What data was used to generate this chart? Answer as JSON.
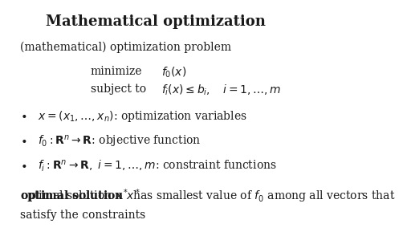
{
  "title": "Mathematical optimization",
  "background_color": "#ffffff",
  "text_color": "#1a1a1a",
  "title_fontsize": 13,
  "body_fontsize": 10,
  "small_fontsize": 9.5,
  "subtitle": "(mathematical) optimization problem",
  "minimize_label": "minimize",
  "minimize_expr": "$f_0(x)$",
  "subject_label": "subject to",
  "subject_expr": "$f_i(x) \\leq b_i, \\quad i = 1, \\ldots, m$",
  "bullet1": "$x = (x_1, \\ldots, x_n)$: optimization variables",
  "bullet2": "$f_0 : \\mathbf{R}^n \\rightarrow \\mathbf{R}$: objective function",
  "bullet3": "$f_i : \\mathbf{R}^n \\rightarrow \\mathbf{R},\\ i = 1, \\ldots, m$: constraint functions",
  "footer_full": "optimal solution $x^*$ has smallest value of $f_0$ among all vectors that\nsatisfy the constraints",
  "footer_bold_end_marker": "optimal solution $x^*$"
}
